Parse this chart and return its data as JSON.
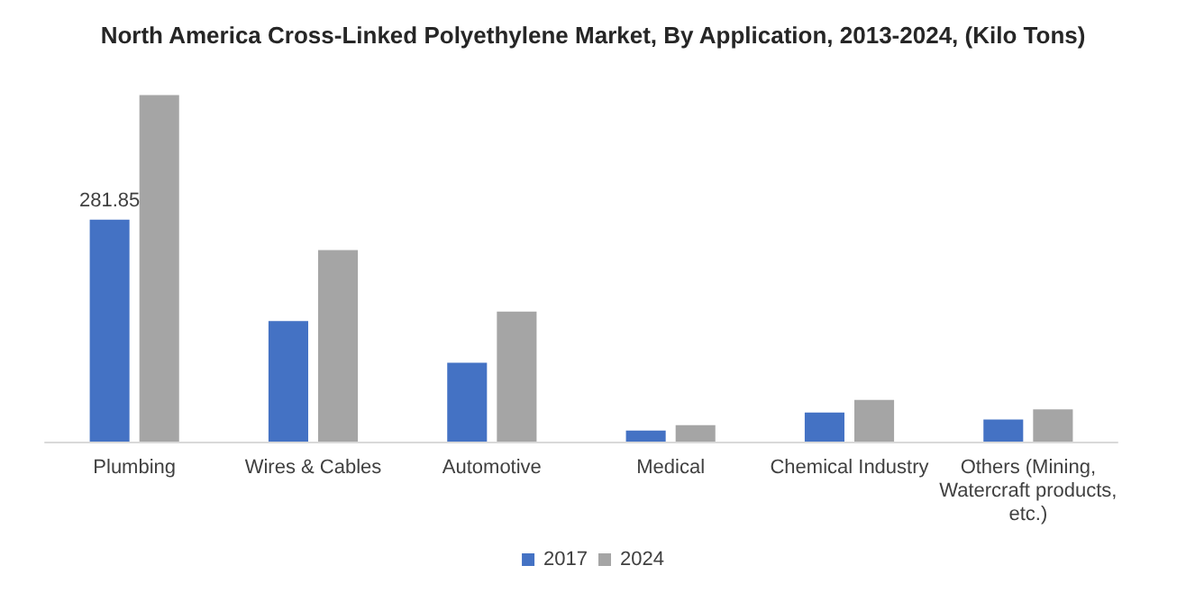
{
  "chart_data": {
    "type": "bar",
    "title": "North America Cross-Linked Polyethylene Market, By Application, 2013-2024, (Kilo Tons)",
    "categories": [
      "Plumbing",
      "Wires & Cables",
      "Automotive",
      "Medical",
      "Chemical Industry",
      "Others (Mining,\nWatercraft products,\netc.)"
    ],
    "series": [
      {
        "name": "2017",
        "color": "#4472c4",
        "values": [
          281.85,
          153,
          100,
          14,
          37,
          28
        ],
        "value_labels": [
          "281.85",
          null,
          null,
          null,
          null,
          null
        ]
      },
      {
        "name": "2024",
        "color": "#a5a5a5",
        "values": [
          440,
          243,
          165,
          21,
          53,
          41
        ]
      }
    ],
    "legend": "bottom"
  }
}
